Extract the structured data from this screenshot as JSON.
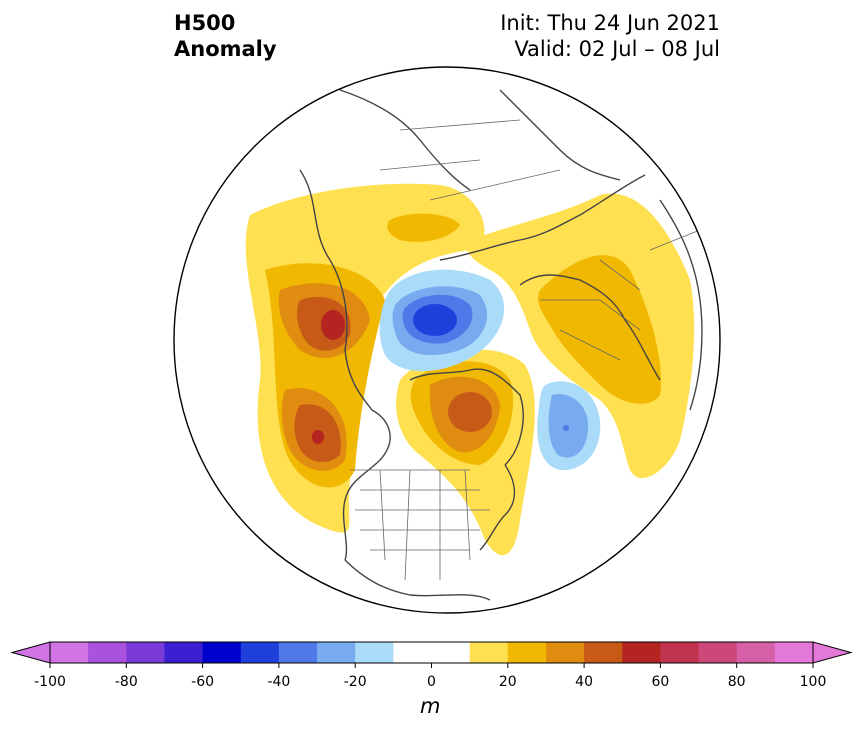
{
  "title": {
    "left_line1": "H500",
    "left_line2": "Anomaly",
    "right_line1": "Init: Thu 24 Jun 2021",
    "right_line2": "Valid: 02 Jul – 08 Jul"
  },
  "colorbar": {
    "label": "m",
    "ticks": [
      "-100",
      "-80",
      "-60",
      "-40",
      "-20",
      "0",
      "20",
      "40",
      "60",
      "80",
      "100"
    ],
    "colors": [
      "#d273e6",
      "#a852df",
      "#7a3ad8",
      "#3c1fd0",
      "#0000cc",
      "#2040dc",
      "#5078e8",
      "#78aaf0",
      "#aadcfa",
      "#ffffff",
      "#ffffff",
      "#ffe050",
      "#f0b800",
      "#e08c10",
      "#c85a18",
      "#b42420",
      "#c03450",
      "#cc4878",
      "#d660a8",
      "#e478d8"
    ],
    "min_color": "#d273e6",
    "max_color": "#e478d8"
  }
}
